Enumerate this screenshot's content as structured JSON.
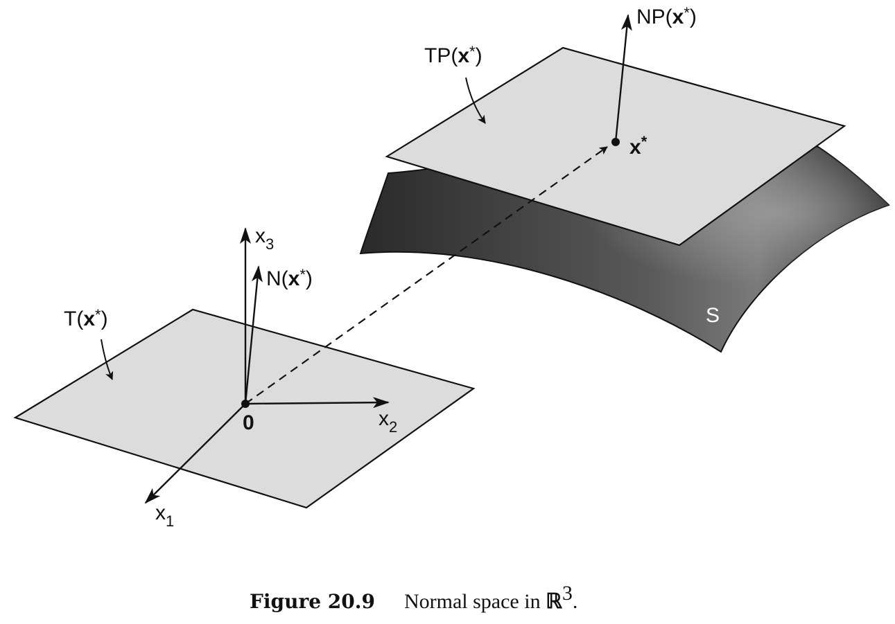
{
  "figure": {
    "caption_number": "Figure 20.9",
    "caption_text_prefix": "Normal space in ",
    "caption_set": "ℝ",
    "caption_exponent": "3",
    "caption_text_suffix": "."
  },
  "labels": {
    "tangent_plane_at_point": {
      "prefix": "TP(",
      "var": "x",
      "star": "*",
      "suffix": ")"
    },
    "normal_plane_at_point": {
      "prefix": "NP(",
      "var": "x",
      "star": "*",
      "suffix": ")"
    },
    "point": {
      "var": "x",
      "star": "*"
    },
    "surface": "S",
    "tangent_space": {
      "prefix": "T(",
      "var": "x",
      "star": "*",
      "suffix": ")"
    },
    "normal_space": {
      "prefix": "N(",
      "var": "x",
      "star": "*",
      "suffix": ")"
    },
    "origin": "0",
    "axis_x1": {
      "base": "x",
      "sub": "1"
    },
    "axis_x2": {
      "base": "x",
      "sub": "2"
    },
    "axis_x3": {
      "base": "x",
      "sub": "3"
    }
  },
  "colors": {
    "plane_fill": "#dcdcdc",
    "surface_dark": "#1e1e1e",
    "surface_light": "#8a8a8a",
    "stroke": "#111111"
  }
}
